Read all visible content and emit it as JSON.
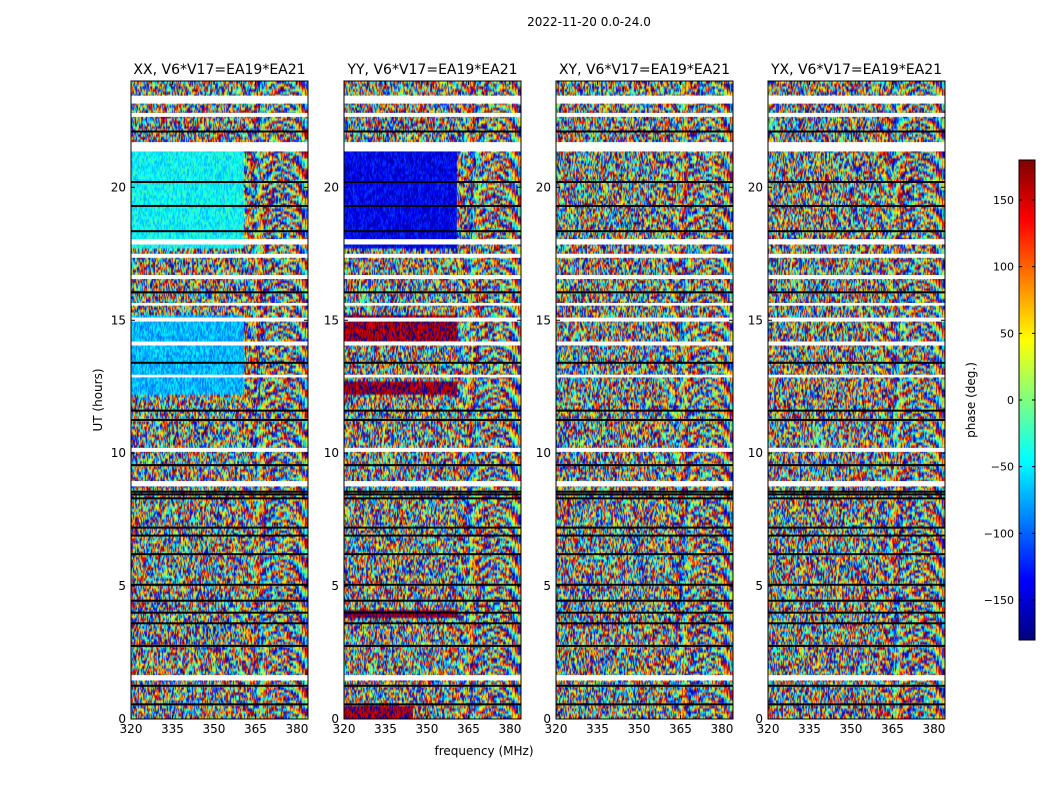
{
  "figure_title": "2022-11-20 0.0-24.0",
  "shared_ylabel": "UT (hours)",
  "shared_xlabel": "frequency (MHz)",
  "colorbar": {
    "label": "phase (deg.)",
    "range": [
      -180,
      180
    ],
    "ticks": [
      -150,
      -100,
      -50,
      0,
      50,
      100,
      150
    ],
    "tick_labels": [
      "−150",
      "−100",
      "−50",
      "0",
      "50",
      "100",
      "150"
    ],
    "colormap": "jet",
    "colors": [
      "#00007f",
      "#0000ff",
      "#007fff",
      "#00ffff",
      "#7fff7f",
      "#ffff00",
      "#ff7f00",
      "#ff0000",
      "#7f0000"
    ]
  },
  "chart_data": [
    {
      "type": "heatmap",
      "title": "XX, V6*V17=EA19*EA21",
      "xlabel": "frequency (MHz)",
      "ylabel": "UT (hours)",
      "xlim": [
        320,
        384
      ],
      "ylim": [
        0,
        24
      ],
      "xticks": [
        320,
        335,
        350,
        365,
        380
      ],
      "xtick_labels": [
        "320",
        "335",
        "350",
        "365",
        "380"
      ],
      "yticks": [
        0,
        5,
        10,
        15,
        20
      ],
      "ytick_labels": [
        "0",
        "5",
        "10",
        "15",
        "20"
      ],
      "value": "phase (deg.)",
      "coherent_bands": [
        {
          "t0": 17.7,
          "t1": 21.5,
          "f1": 361,
          "phase": -45
        },
        {
          "t0": 12.2,
          "t1": 15.2,
          "f1": 361,
          "phase": -70
        }
      ]
    },
    {
      "type": "heatmap",
      "title": "YY, V6*V17=EA19*EA21",
      "xlabel": "frequency (MHz)",
      "ylabel": "UT (hours)",
      "xlim": [
        320,
        384
      ],
      "ylim": [
        0,
        24
      ],
      "xticks": [
        320,
        335,
        350,
        365,
        380
      ],
      "xtick_labels": [
        "320",
        "335",
        "350",
        "365",
        "380"
      ],
      "yticks": [
        0,
        5,
        10,
        15,
        20
      ],
      "ytick_labels": [
        "0",
        "5",
        "10",
        "15",
        "20"
      ],
      "value": "phase (deg.)",
      "coherent_bands": [
        {
          "t0": 17.7,
          "t1": 21.5,
          "f1": 361,
          "phase": -140
        },
        {
          "t0": 14.2,
          "t1": 15.2,
          "f1": 361,
          "phase": 170
        },
        {
          "t0": 12.2,
          "t1": 12.7,
          "f1": 361,
          "phase": 170
        },
        {
          "t0": 3.8,
          "t1": 4.1,
          "f1": 361,
          "phase": 175
        },
        {
          "t0": 0.0,
          "t1": 0.5,
          "f1": 345,
          "phase": 170
        }
      ]
    },
    {
      "type": "heatmap",
      "title": "XY, V6*V17=EA19*EA21",
      "xlabel": "frequency (MHz)",
      "ylabel": "UT (hours)",
      "xlim": [
        320,
        384
      ],
      "ylim": [
        0,
        24
      ],
      "xticks": [
        320,
        335,
        350,
        365,
        380
      ],
      "xtick_labels": [
        "320",
        "335",
        "350",
        "365",
        "380"
      ],
      "yticks": [
        0,
        5,
        10,
        15,
        20
      ],
      "ytick_labels": [
        "0",
        "5",
        "10",
        "15",
        "20"
      ],
      "value": "phase (deg.)",
      "coherent_bands": []
    },
    {
      "type": "heatmap",
      "title": "YX, V6*V17=EA19*EA21",
      "xlabel": "frequency (MHz)",
      "ylabel": "UT (hours)",
      "xlim": [
        320,
        384
      ],
      "ylim": [
        0,
        24
      ],
      "xticks": [
        320,
        335,
        350,
        365,
        380
      ],
      "xtick_labels": [
        "320",
        "335",
        "350",
        "365",
        "380"
      ],
      "yticks": [
        0,
        5,
        10,
        15,
        20
      ],
      "ytick_labels": [
        "0",
        "5",
        "10",
        "15",
        "20"
      ],
      "value": "phase (deg.)",
      "coherent_bands": []
    }
  ],
  "flagged_gaps_hours": [
    [
      23.15,
      23.45
    ],
    [
      22.65,
      22.8
    ],
    [
      21.35,
      21.7
    ],
    [
      17.85,
      18.05
    ],
    [
      17.35,
      17.5
    ],
    [
      16.55,
      16.7
    ],
    [
      15.55,
      15.65
    ],
    [
      14.95,
      15.1
    ],
    [
      14.05,
      14.2
    ],
    [
      12.85,
      12.95
    ],
    [
      10.05,
      10.2
    ],
    [
      8.75,
      8.95
    ],
    [
      1.45,
      1.65
    ]
  ],
  "scan_boundaries_hours": [
    22.1,
    20.2,
    19.3,
    18.35,
    16.05,
    13.4,
    11.6,
    11.25,
    9.55,
    8.55,
    8.45,
    8.3,
    7.2,
    6.9,
    6.2,
    5.05,
    4.45,
    4.0,
    3.6,
    2.75,
    1.25,
    0.55
  ]
}
